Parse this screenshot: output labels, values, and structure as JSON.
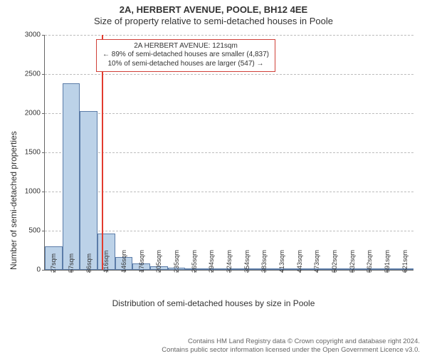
{
  "title": {
    "line1": "2A, HERBERT AVENUE, POOLE, BH12 4EE",
    "line2": "Size of property relative to semi-detached houses in Poole"
  },
  "chart": {
    "type": "histogram",
    "ylabel": "Number of semi-detached properties",
    "xlabel": "Distribution of semi-detached houses by size in Poole",
    "ylim": [
      0,
      3000
    ],
    "ytick_step": 500,
    "yticks": [
      0,
      500,
      1000,
      1500,
      2000,
      2500,
      3000
    ],
    "n_bins": 21,
    "xtick_labels": [
      "27sqm",
      "57sqm",
      "86sqm",
      "116sqm",
      "146sqm",
      "176sqm",
      "205sqm",
      "235sqm",
      "265sqm",
      "294sqm",
      "324sqm",
      "354sqm",
      "383sqm",
      "413sqm",
      "443sqm",
      "473sqm",
      "502sqm",
      "532sqm",
      "562sqm",
      "591sqm",
      "621sqm"
    ],
    "values": [
      300,
      2380,
      2020,
      460,
      160,
      80,
      45,
      25,
      18,
      10,
      8,
      6,
      5,
      4,
      3,
      3,
      2,
      2,
      2,
      2,
      2
    ],
    "bar_fill": "#bcd2e8",
    "bar_stroke": "#5b7ca8",
    "grid_color": "#bdbdbd",
    "background_color": "#ffffff",
    "axis_color": "#666666",
    "label_fontsize": 12,
    "tick_fontsize": 10,
    "reference_line": {
      "bin_index_after": 3,
      "color": "#e23b2e"
    },
    "annotation": {
      "line1": "2A HERBERT AVENUE: 121sqm",
      "line2": "← 89% of semi-detached houses are smaller (4,837)",
      "line3": "10% of semi-detached houses are larger (547) →",
      "border_color": "#d04038",
      "bg_color": "#ffffff",
      "fontsize": 10
    }
  },
  "footer": {
    "line1": "Contains HM Land Registry data © Crown copyright and database right 2024.",
    "line2": "Contains public sector information licensed under the Open Government Licence v3.0."
  }
}
